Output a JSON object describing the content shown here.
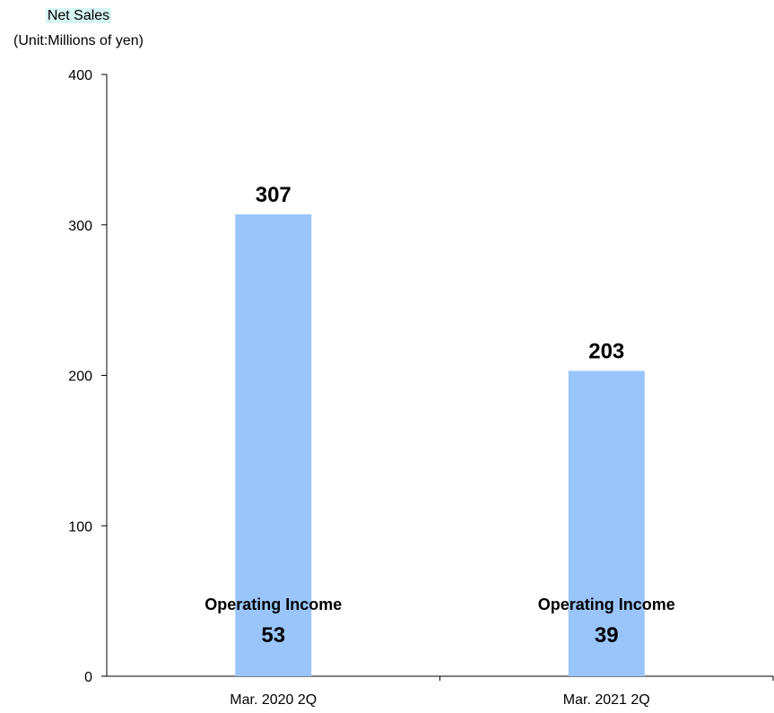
{
  "chart_data": {
    "type": "bar",
    "title": "Net Sales",
    "ylabel": "(Unit:Millions of yen)",
    "xlabel": "",
    "categories": [
      "Mar. 2020 2Q",
      "Mar. 2021 2Q"
    ],
    "values": [
      307,
      203
    ],
    "value_labels": [
      "307",
      "203"
    ],
    "ylim": [
      0,
      400
    ],
    "yticks": [
      0,
      100,
      200,
      300,
      400
    ],
    "ytick_labels": [
      "0",
      "100",
      "200",
      "300",
      "400"
    ],
    "grid": false,
    "bar_color": "#99c5fb",
    "title_highlight_color": "#d6f5f3",
    "annotations": [
      {
        "label": "Operating Income",
        "value": "53"
      },
      {
        "label": "Operating Income",
        "value": "39"
      }
    ]
  }
}
